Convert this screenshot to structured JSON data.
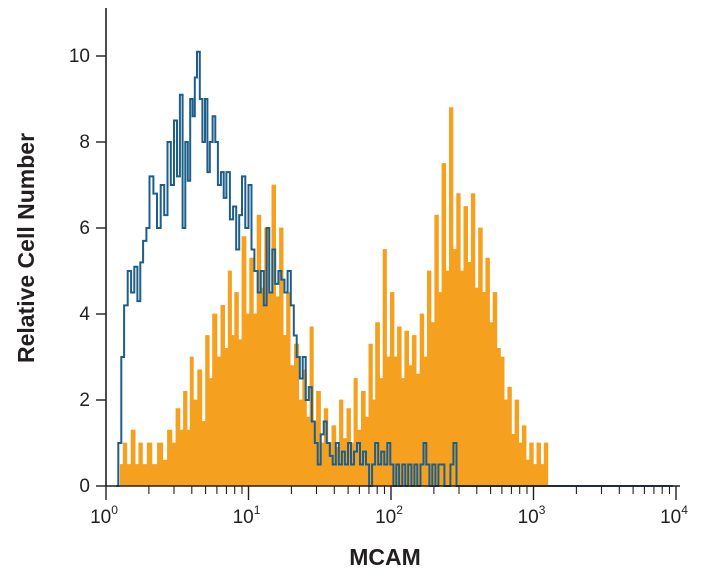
{
  "chart_data": {
    "type": "histogram",
    "xlabel": "MCAM",
    "ylabel": "Relative Cell Number",
    "x_scale": "log",
    "xlim": [
      1,
      10000
    ],
    "ylim": [
      0,
      10
    ],
    "grid": false,
    "legend": "none",
    "x_ticks": [
      {
        "base": "10",
        "exp": "0",
        "value": 1
      },
      {
        "base": "10",
        "exp": "1",
        "value": 10
      },
      {
        "base": "10",
        "exp": "2",
        "value": 100
      },
      {
        "base": "10",
        "exp": "3",
        "value": 1000
      },
      {
        "base": "10",
        "exp": "4",
        "value": 10000
      }
    ],
    "y_ticks": [
      "0",
      "2",
      "4",
      "6",
      "8",
      "10"
    ],
    "series": [
      {
        "style": "filled",
        "color": "#f5a01e",
        "points": [
          [
            1.26,
            0.5
          ],
          [
            1.32,
            1.0
          ],
          [
            1.4,
            0.5
          ],
          [
            1.5,
            1.3
          ],
          [
            1.6,
            0.5
          ],
          [
            1.7,
            1.0
          ],
          [
            1.8,
            0.5
          ],
          [
            1.95,
            1.0
          ],
          [
            2.1,
            0.5
          ],
          [
            2.3,
            1.0
          ],
          [
            2.5,
            0.6
          ],
          [
            2.7,
            1.3
          ],
          [
            2.9,
            1.0
          ],
          [
            3.1,
            1.8
          ],
          [
            3.3,
            1.3
          ],
          [
            3.5,
            2.2
          ],
          [
            3.7,
            1.3
          ],
          [
            3.9,
            3.0
          ],
          [
            4.1,
            2.0
          ],
          [
            4.4,
            2.7
          ],
          [
            4.7,
            1.5
          ],
          [
            5.0,
            3.5
          ],
          [
            5.3,
            2.5
          ],
          [
            5.6,
            4.0
          ],
          [
            6.0,
            3.0
          ],
          [
            6.4,
            4.2
          ],
          [
            6.8,
            3.2
          ],
          [
            7.2,
            5.0
          ],
          [
            7.6,
            3.5
          ],
          [
            8.0,
            4.5
          ],
          [
            8.5,
            3.4
          ],
          [
            9.0,
            5.8
          ],
          [
            9.6,
            4.0
          ],
          [
            10.2,
            5.3
          ],
          [
            10.8,
            4.0
          ],
          [
            11.5,
            6.3
          ],
          [
            12.2,
            4.6
          ],
          [
            13.0,
            6.0
          ],
          [
            13.8,
            4.5
          ],
          [
            14.6,
            7.0
          ],
          [
            15.5,
            4.4
          ],
          [
            16.5,
            6.0
          ],
          [
            17.5,
            3.5
          ],
          [
            18.5,
            4.5
          ],
          [
            19.6,
            2.8
          ],
          [
            21.0,
            3.3
          ],
          [
            22.5,
            2.0
          ],
          [
            24.0,
            2.7
          ],
          [
            25.5,
            1.6
          ],
          [
            27.0,
            3.7
          ],
          [
            28.5,
            1.5
          ],
          [
            30.0,
            2.2
          ],
          [
            32.0,
            1.0
          ],
          [
            34.0,
            1.8
          ],
          [
            36.0,
            1.0
          ],
          [
            38.5,
            1.4
          ],
          [
            41.0,
            0.9
          ],
          [
            43.5,
            2.0
          ],
          [
            46.0,
            1.1
          ],
          [
            49.0,
            1.8
          ],
          [
            52.0,
            1.0
          ],
          [
            55.0,
            2.5
          ],
          [
            58.0,
            1.3
          ],
          [
            62.0,
            2.2
          ],
          [
            66.0,
            1.6
          ],
          [
            70.0,
            3.3
          ],
          [
            74.0,
            2.0
          ],
          [
            78.0,
            3.8
          ],
          [
            83.0,
            2.5
          ],
          [
            88.0,
            5.5
          ],
          [
            93.0,
            3.0
          ],
          [
            99.0,
            4.5
          ],
          [
            105.0,
            3.0
          ],
          [
            111.0,
            3.7
          ],
          [
            118.0,
            2.5
          ],
          [
            125.0,
            3.6
          ],
          [
            133.0,
            2.8
          ],
          [
            141.0,
            3.5
          ],
          [
            150.0,
            2.6
          ],
          [
            160.0,
            4.0
          ],
          [
            170.0,
            3.0
          ],
          [
            180.0,
            5.0
          ],
          [
            191.0,
            3.8
          ],
          [
            203.0,
            6.3
          ],
          [
            215.0,
            4.5
          ],
          [
            228.0,
            7.5
          ],
          [
            242.0,
            5.0
          ],
          [
            257.0,
            8.8
          ],
          [
            272.0,
            5.5
          ],
          [
            289.0,
            6.8
          ],
          [
            306.0,
            5.0
          ],
          [
            325.0,
            6.5
          ],
          [
            345.0,
            5.2
          ],
          [
            366.0,
            6.8
          ],
          [
            388.0,
            4.6
          ],
          [
            412.0,
            6.0
          ],
          [
            437.0,
            4.5
          ],
          [
            463.0,
            5.3
          ],
          [
            491.0,
            3.8
          ],
          [
            521.0,
            4.5
          ],
          [
            553.0,
            3.2
          ],
          [
            586.0,
            3.0
          ],
          [
            622.0,
            2.0
          ],
          [
            660.0,
            2.3
          ],
          [
            700.0,
            1.2
          ],
          [
            742.0,
            2.0
          ],
          [
            787.0,
            1.0
          ],
          [
            835.0,
            1.4
          ],
          [
            886.0,
            0.6
          ],
          [
            940.0,
            1.0
          ],
          [
            997.0,
            0.5
          ],
          [
            1057.0,
            1.0
          ],
          [
            1121.0,
            0.5
          ],
          [
            1189.0,
            1.0
          ],
          [
            1260.0,
            0.0
          ]
        ]
      },
      {
        "style": "outline",
        "color": "#1d5f8a",
        "points": [
          [
            1.18,
            0.0
          ],
          [
            1.22,
            1.0
          ],
          [
            1.28,
            3.0
          ],
          [
            1.34,
            4.2
          ],
          [
            1.42,
            5.0
          ],
          [
            1.5,
            4.5
          ],
          [
            1.58,
            5.1
          ],
          [
            1.66,
            4.3
          ],
          [
            1.74,
            5.2
          ],
          [
            1.82,
            5.7
          ],
          [
            1.92,
            6.0
          ],
          [
            2.02,
            7.2
          ],
          [
            2.15,
            6.8
          ],
          [
            2.28,
            6.0
          ],
          [
            2.42,
            7.0
          ],
          [
            2.56,
            6.3
          ],
          [
            2.7,
            8.0
          ],
          [
            2.85,
            7.0
          ],
          [
            3.0,
            8.5
          ],
          [
            3.15,
            7.2
          ],
          [
            3.3,
            9.1
          ],
          [
            3.45,
            6.0
          ],
          [
            3.6,
            8.0
          ],
          [
            3.75,
            7.1
          ],
          [
            3.9,
            9.0
          ],
          [
            4.05,
            8.6
          ],
          [
            4.2,
            9.5
          ],
          [
            4.35,
            10.1
          ],
          [
            4.55,
            9.0
          ],
          [
            4.75,
            8.0
          ],
          [
            4.95,
            9.0
          ],
          [
            5.15,
            7.3
          ],
          [
            5.35,
            8.0
          ],
          [
            5.6,
            8.6
          ],
          [
            5.85,
            8.0
          ],
          [
            6.1,
            7.0
          ],
          [
            6.4,
            7.3
          ],
          [
            6.7,
            6.7
          ],
          [
            7.0,
            7.3
          ],
          [
            7.4,
            6.2
          ],
          [
            7.8,
            6.5
          ],
          [
            8.2,
            5.5
          ],
          [
            8.6,
            6.3
          ],
          [
            9.0,
            7.2
          ],
          [
            9.5,
            6.0
          ],
          [
            10.0,
            7.0
          ],
          [
            10.5,
            5.5
          ],
          [
            11.0,
            5.0
          ],
          [
            11.6,
            4.5
          ],
          [
            12.2,
            5.0
          ],
          [
            12.8,
            4.2
          ],
          [
            13.4,
            6.0
          ],
          [
            14.0,
            4.5
          ],
          [
            14.7,
            5.5
          ],
          [
            15.4,
            4.7
          ],
          [
            16.2,
            5.0
          ],
          [
            17.0,
            4.8
          ],
          [
            17.9,
            4.5
          ],
          [
            18.8,
            5.0
          ],
          [
            19.8,
            4.2
          ],
          [
            20.8,
            3.5
          ],
          [
            21.8,
            3.0
          ],
          [
            22.9,
            2.5
          ],
          [
            24.0,
            3.0
          ],
          [
            25.2,
            2.0
          ],
          [
            26.5,
            2.3
          ],
          [
            27.8,
            1.5
          ],
          [
            29.2,
            1.0
          ],
          [
            30.6,
            0.5
          ],
          [
            32.1,
            1.2
          ],
          [
            33.7,
            1.5
          ],
          [
            35.4,
            1.0
          ],
          [
            37.2,
            0.7
          ],
          [
            39.0,
            0.5
          ],
          [
            41.0,
            1.0
          ],
          [
            43.0,
            0.5
          ],
          [
            45.2,
            0.8
          ],
          [
            47.5,
            0.5
          ],
          [
            49.9,
            1.0
          ],
          [
            52.4,
            0.5
          ],
          [
            55.0,
            0.8
          ],
          [
            57.7,
            1.0
          ],
          [
            60.6,
            0.5
          ],
          [
            63.6,
            0.8
          ],
          [
            66.8,
            0.5
          ],
          [
            70.2,
            0.0
          ],
          [
            73.7,
            0.5
          ],
          [
            77.4,
            1.0
          ],
          [
            81.3,
            0.5
          ],
          [
            85.4,
            0.8
          ],
          [
            89.7,
            0.5
          ],
          [
            94.2,
            1.0
          ],
          [
            98.9,
            0.5
          ],
          [
            104.0,
            0.0
          ],
          [
            109.0,
            0.5
          ],
          [
            114.0,
            0.0
          ],
          [
            120.0,
            0.5
          ],
          [
            126.0,
            0.0
          ],
          [
            132.0,
            0.5
          ],
          [
            139.0,
            0.0
          ],
          [
            146.0,
            0.5
          ],
          [
            153.0,
            0.0
          ],
          [
            161.0,
            0.5
          ],
          [
            169.0,
            1.0
          ],
          [
            177.0,
            0.5
          ],
          [
            186.0,
            0.0
          ],
          [
            195.0,
            0.5
          ],
          [
            205.0,
            0.0
          ],
          [
            215.0,
            0.5
          ],
          [
            226.0,
            0.5
          ],
          [
            237.0,
            0.0
          ],
          [
            249.0,
            0.0
          ],
          [
            261.0,
            0.5
          ],
          [
            274.0,
            1.0
          ],
          [
            288.0,
            0.0
          ],
          [
            302.0,
            0.0
          ],
          [
            1260.0,
            0.0
          ],
          [
            9500.0,
            0.0
          ]
        ]
      }
    ]
  }
}
